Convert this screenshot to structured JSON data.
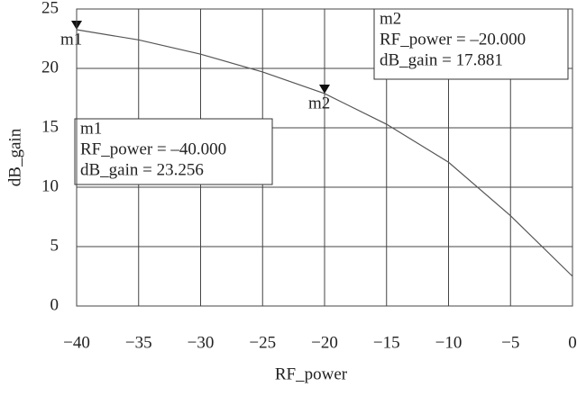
{
  "chart_data": {
    "type": "line",
    "x_label": "RF_power",
    "y_label": "dB_gain",
    "x": [
      -40,
      -35,
      -30,
      -25,
      -20,
      -15,
      -10,
      -5,
      0
    ],
    "series": [
      {
        "name": "dB_gain",
        "color": "#555555",
        "values": [
          23.256,
          22.4,
          21.2,
          19.7,
          17.881,
          15.3,
          12.1,
          7.6,
          2.5
        ]
      }
    ],
    "xlim": [
      -40,
      0
    ],
    "ylim": [
      0,
      25
    ],
    "xticks": [
      {
        "value": -40,
        "label": "−40"
      },
      {
        "value": -35,
        "label": "−35"
      },
      {
        "value": -30,
        "label": "−30"
      },
      {
        "value": -25,
        "label": "−25"
      },
      {
        "value": -20,
        "label": "−20"
      },
      {
        "value": -15,
        "label": "−15"
      },
      {
        "value": -10,
        "label": "−10"
      },
      {
        "value": -5,
        "label": "−5"
      },
      0
    ],
    "yticks": [
      0,
      5,
      10,
      15,
      20,
      25
    ],
    "grid": true,
    "markers": [
      {
        "name": "m1",
        "x": -40,
        "y": 23.256,
        "lines": [
          "m1",
          "RF_power = –40.000",
          "dB_gain = 23.256"
        ]
      },
      {
        "name": "m2",
        "x": -20,
        "y": 17.881,
        "lines": [
          "m2",
          "RF_power = –20.000",
          "dB_gain = 17.881"
        ]
      }
    ]
  }
}
